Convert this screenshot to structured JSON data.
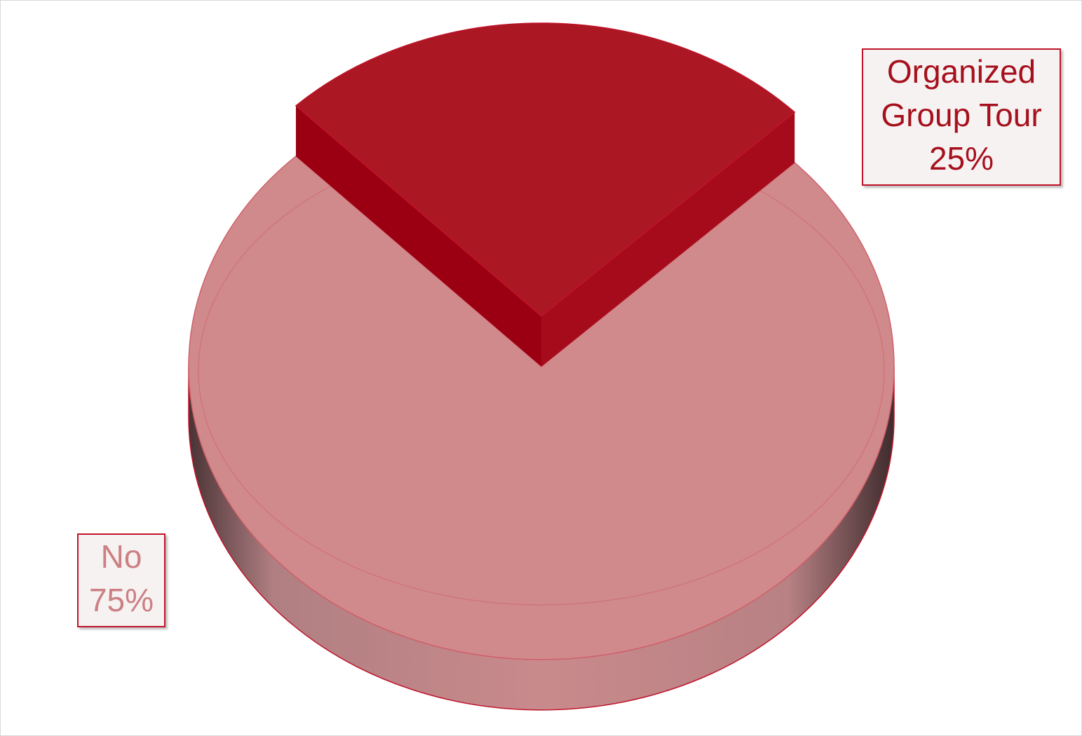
{
  "chart_data": {
    "type": "pie",
    "slices": [
      {
        "name": "Organized Group Tour",
        "value": 25,
        "label_lines": [
          "Organized",
          "Group Tour",
          "25%"
        ],
        "color": "#ab1723"
      },
      {
        "name": "No",
        "value": 75,
        "label_lines": [
          "No",
          "75%"
        ],
        "color": "#d18a8c"
      }
    ],
    "style": "3d"
  }
}
